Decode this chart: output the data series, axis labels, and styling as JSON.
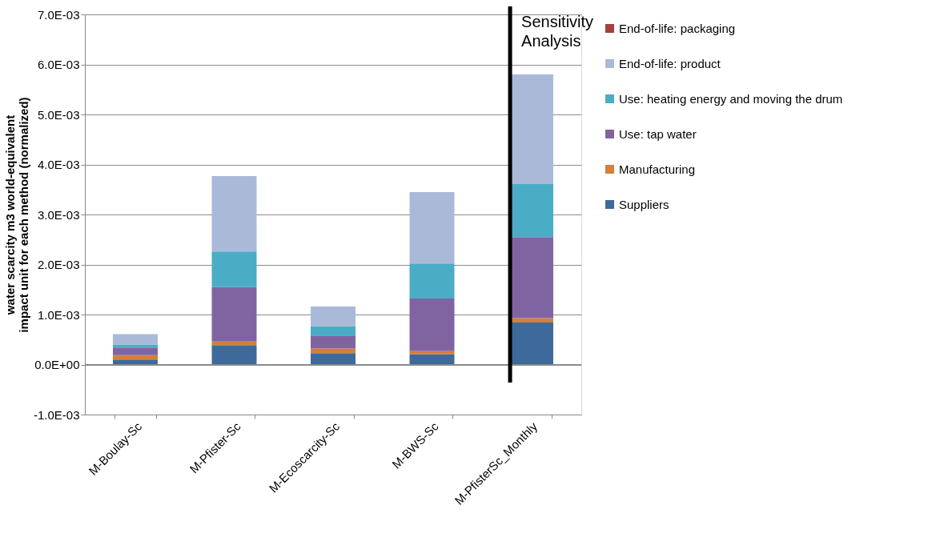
{
  "chart_data": {
    "type": "bar",
    "stacked": true,
    "ylabel": "water scarcity  m3 world-equivalent  impact unit for each method (normalized)",
    "categories": [
      "M-Boulay-Sc",
      "M-Pfister-Sc",
      "M-Ecoscarcity-Sc",
      "M-BWS-Sc",
      "M-PfisterSc_Monthly"
    ],
    "series": [
      {
        "name": "Suppliers",
        "color": "#3e6a9b",
        "values": [
          0.0001,
          0.00039,
          0.00023,
          0.00021,
          0.00084
        ]
      },
      {
        "name": "Manufacturing",
        "color": "#d47f3a",
        "values": [
          9e-05,
          7e-05,
          9e-05,
          6e-05,
          9e-05
        ]
      },
      {
        "name": "Use: tap water",
        "color": "#8064a2",
        "values": [
          0.00015,
          0.00109,
          0.00026,
          0.00105,
          0.00162
        ]
      },
      {
        "name": "Use: heating energy and moving the drum",
        "color": "#4bacc6",
        "values": [
          6e-05,
          0.00071,
          0.00019,
          0.0007,
          0.00106
        ]
      },
      {
        "name": "End-of-life: product",
        "color": "#aab9d8",
        "values": [
          0.00021,
          0.00151,
          0.00039,
          0.00143,
          0.00219
        ]
      },
      {
        "name": "End-of-life: packaging",
        "color": "#a5403c",
        "values": [
          0,
          0,
          0,
          0,
          0
        ]
      }
    ],
    "ylim": [
      -0.001,
      0.007
    ],
    "yticks": [
      {
        "value": -0.001,
        "label": "-1.0E-03"
      },
      {
        "value": 0,
        "label": "0.0E+00"
      },
      {
        "value": 0.001,
        "label": "1.0E-03"
      },
      {
        "value": 0.002,
        "label": "2.0E-03"
      },
      {
        "value": 0.003,
        "label": "3.0E-03"
      },
      {
        "value": 0.004,
        "label": "4.0E-03"
      },
      {
        "value": 0.005,
        "label": "5.0E-03"
      },
      {
        "value": 0.006,
        "label": "6.0E-03"
      },
      {
        "value": 0.007,
        "label": "7.0E-03"
      }
    ],
    "ref_lines": [
      {
        "axis": "x",
        "value": "M-PfisterSc_Monthly",
        "label": "Sensitivity Analysis",
        "color": "#000000"
      }
    ],
    "grid": "y",
    "legend": "right"
  }
}
